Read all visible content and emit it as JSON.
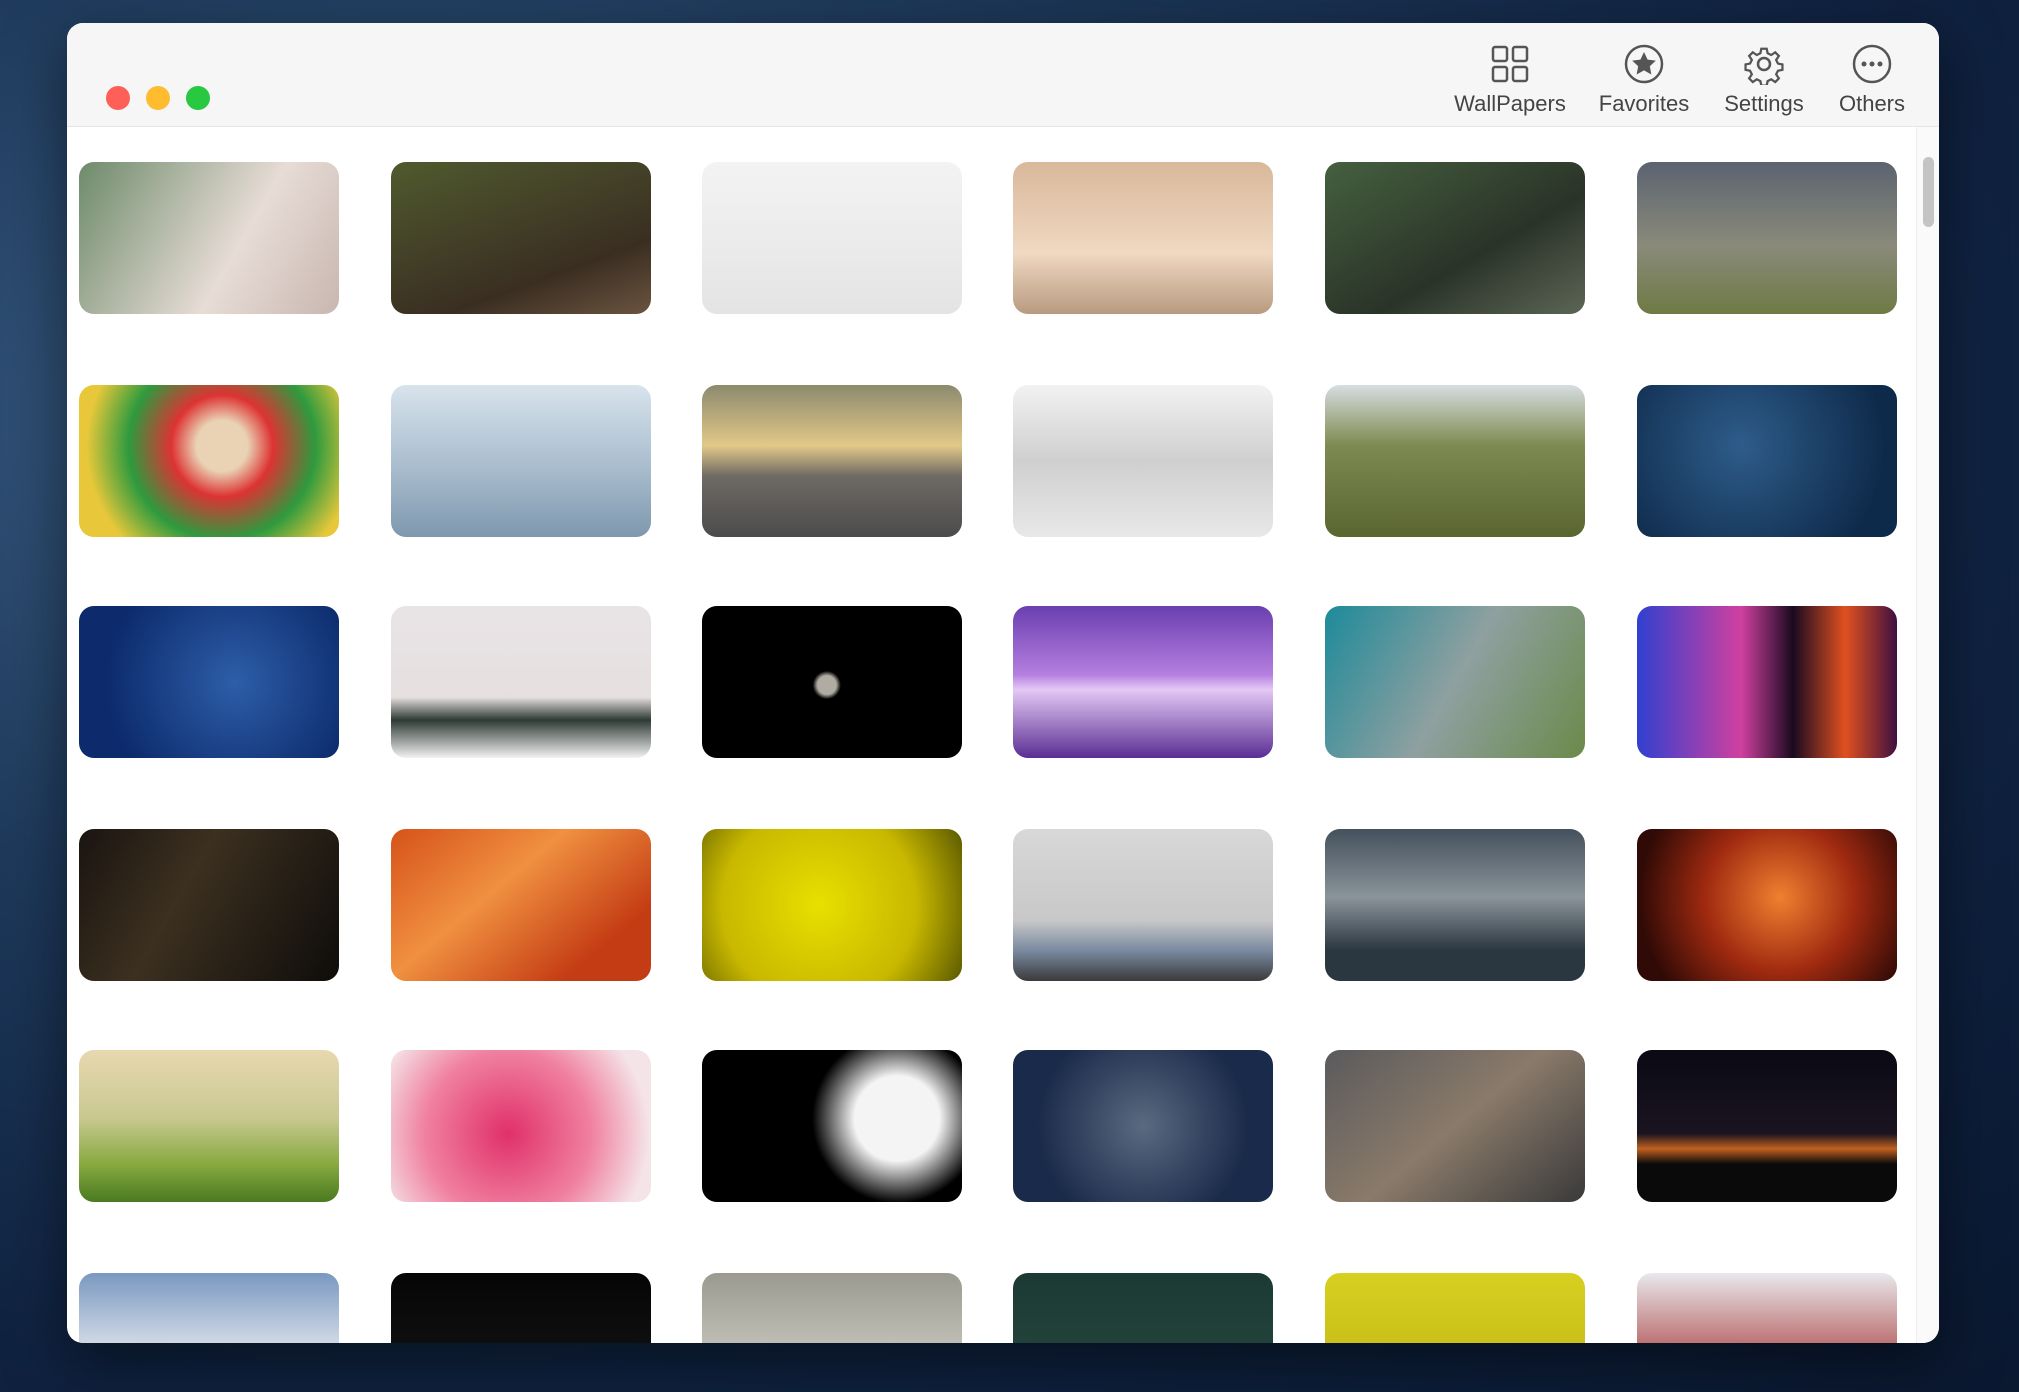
{
  "toolbar": {
    "items": [
      {
        "label": "WallPapers"
      },
      {
        "label": "Favorites"
      },
      {
        "label": "Settings"
      },
      {
        "label": "Others"
      }
    ]
  }
}
